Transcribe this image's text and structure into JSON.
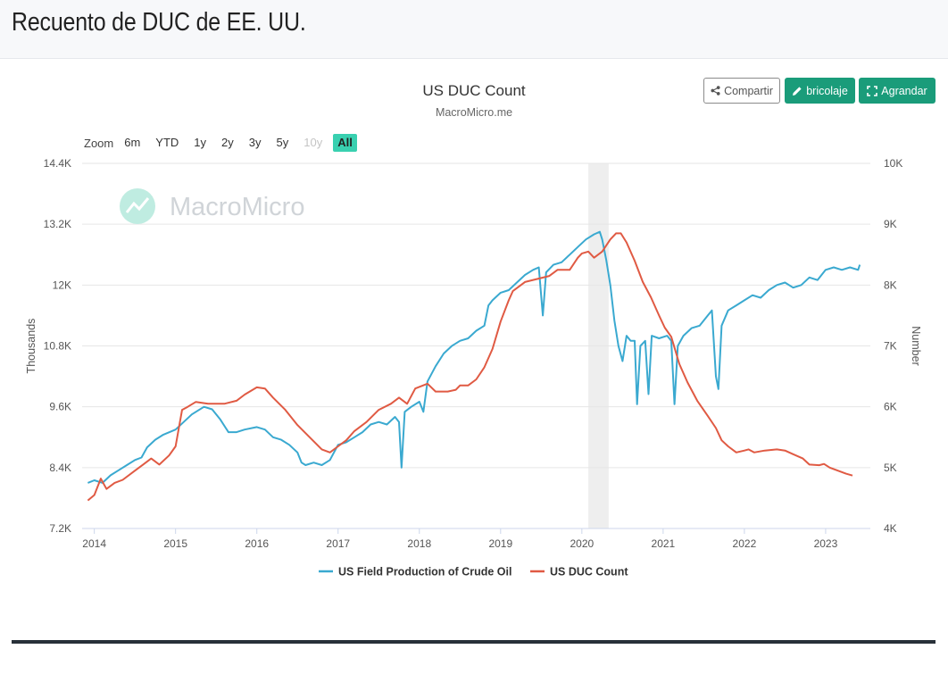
{
  "page": {
    "title": "Recuento de DUC de EE. UU."
  },
  "toolbar": {
    "share_label": "Compartir",
    "diy_label": "bricolaje",
    "expand_label": "Agrandar",
    "share_icon": "share-icon",
    "diy_icon": "pencil-icon",
    "expand_icon": "expand-icon"
  },
  "zoom": {
    "label": "Zoom",
    "options": [
      "6m",
      "YTD",
      "1y",
      "2y",
      "3y",
      "5y",
      "10y",
      "All"
    ],
    "disabled": "10y",
    "selected": "All"
  },
  "watermark": "MacroMicro",
  "chart_data": {
    "type": "line",
    "title": "US DUC Count",
    "subtitle": "MacroMicro.me",
    "yleft": {
      "label": "Thousands",
      "min": 7200,
      "max": 14400,
      "ticks": [
        7200,
        8400,
        9600,
        10800,
        12000,
        13200,
        14400
      ],
      "tick_labels": [
        "7.2K",
        "8.4K",
        "9.6K",
        "10.8K",
        "12K",
        "13.2K",
        "14.4K"
      ]
    },
    "yright": {
      "label": "Number",
      "min": 4000,
      "max": 10000,
      "ticks": [
        4000,
        5000,
        6000,
        7000,
        8000,
        9000,
        10000
      ],
      "tick_labels": [
        "4K",
        "5K",
        "6K",
        "7K",
        "8K",
        "9K",
        "10K"
      ]
    },
    "xaxis": {
      "min": 2013.85,
      "max": 2023.55,
      "ticks": [
        2014,
        2015,
        2016,
        2017,
        2018,
        2019,
        2020,
        2021,
        2022,
        2023
      ],
      "tick_labels": [
        "2014",
        "2015",
        "2016",
        "2017",
        "2018",
        "2019",
        "2020",
        "2021",
        "2022",
        "2023"
      ]
    },
    "shaded_period": [
      2020.08,
      2020.33
    ],
    "colors": {
      "crude": "#3aa9d0",
      "duc": "#e05a43",
      "shade": "#eeeeee",
      "grid": "#e6e6e6"
    },
    "series": [
      {
        "name": "US Field Production of Crude Oil",
        "axis": "left",
        "color": "#3aa9d0",
        "points": [
          [
            2013.92,
            8100
          ],
          [
            2014.0,
            8150
          ],
          [
            2014.1,
            8100
          ],
          [
            2014.2,
            8250
          ],
          [
            2014.3,
            8350
          ],
          [
            2014.4,
            8450
          ],
          [
            2014.5,
            8550
          ],
          [
            2014.58,
            8600
          ],
          [
            2014.65,
            8800
          ],
          [
            2014.75,
            8950
          ],
          [
            2014.85,
            9050
          ],
          [
            2015.0,
            9150
          ],
          [
            2015.1,
            9300
          ],
          [
            2015.2,
            9450
          ],
          [
            2015.35,
            9600
          ],
          [
            2015.45,
            9550
          ],
          [
            2015.55,
            9350
          ],
          [
            2015.65,
            9100
          ],
          [
            2015.75,
            9100
          ],
          [
            2015.85,
            9150
          ],
          [
            2016.0,
            9200
          ],
          [
            2016.1,
            9150
          ],
          [
            2016.2,
            9000
          ],
          [
            2016.3,
            8950
          ],
          [
            2016.4,
            8850
          ],
          [
            2016.5,
            8700
          ],
          [
            2016.55,
            8500
          ],
          [
            2016.6,
            8450
          ],
          [
            2016.7,
            8500
          ],
          [
            2016.8,
            8450
          ],
          [
            2016.9,
            8550
          ],
          [
            2017.0,
            8850
          ],
          [
            2017.1,
            8900
          ],
          [
            2017.2,
            9000
          ],
          [
            2017.3,
            9100
          ],
          [
            2017.4,
            9250
          ],
          [
            2017.5,
            9300
          ],
          [
            2017.6,
            9250
          ],
          [
            2017.7,
            9400
          ],
          [
            2017.75,
            9300
          ],
          [
            2017.78,
            8400
          ],
          [
            2017.82,
            9500
          ],
          [
            2017.9,
            9600
          ],
          [
            2018.0,
            9700
          ],
          [
            2018.05,
            9500
          ],
          [
            2018.1,
            10100
          ],
          [
            2018.2,
            10400
          ],
          [
            2018.3,
            10650
          ],
          [
            2018.4,
            10800
          ],
          [
            2018.5,
            10900
          ],
          [
            2018.6,
            10950
          ],
          [
            2018.7,
            11100
          ],
          [
            2018.8,
            11200
          ],
          [
            2018.85,
            11600
          ],
          [
            2018.9,
            11700
          ],
          [
            2019.0,
            11850
          ],
          [
            2019.1,
            11900
          ],
          [
            2019.2,
            12050
          ],
          [
            2019.3,
            12200
          ],
          [
            2019.4,
            12300
          ],
          [
            2019.47,
            12350
          ],
          [
            2019.52,
            11400
          ],
          [
            2019.56,
            12250
          ],
          [
            2019.65,
            12400
          ],
          [
            2019.75,
            12450
          ],
          [
            2019.85,
            12600
          ],
          [
            2019.95,
            12750
          ],
          [
            2020.05,
            12900
          ],
          [
            2020.15,
            13000
          ],
          [
            2020.22,
            13050
          ],
          [
            2020.25,
            12900
          ],
          [
            2020.3,
            12500
          ],
          [
            2020.35,
            12000
          ],
          [
            2020.4,
            11300
          ],
          [
            2020.45,
            10800
          ],
          [
            2020.5,
            10500
          ],
          [
            2020.55,
            11000
          ],
          [
            2020.6,
            10900
          ],
          [
            2020.65,
            10900
          ],
          [
            2020.68,
            9650
          ],
          [
            2020.72,
            10800
          ],
          [
            2020.78,
            10900
          ],
          [
            2020.82,
            9850
          ],
          [
            2020.86,
            11000
          ],
          [
            2020.95,
            10950
          ],
          [
            2021.05,
            11000
          ],
          [
            2021.1,
            10900
          ],
          [
            2021.14,
            9650
          ],
          [
            2021.18,
            10800
          ],
          [
            2021.25,
            11000
          ],
          [
            2021.35,
            11150
          ],
          [
            2021.45,
            11200
          ],
          [
            2021.55,
            11400
          ],
          [
            2021.6,
            11500
          ],
          [
            2021.65,
            10200
          ],
          [
            2021.68,
            9950
          ],
          [
            2021.72,
            11200
          ],
          [
            2021.8,
            11500
          ],
          [
            2021.9,
            11600
          ],
          [
            2022.0,
            11700
          ],
          [
            2022.1,
            11800
          ],
          [
            2022.2,
            11750
          ],
          [
            2022.3,
            11900
          ],
          [
            2022.4,
            12000
          ],
          [
            2022.5,
            12050
          ],
          [
            2022.6,
            11950
          ],
          [
            2022.7,
            12000
          ],
          [
            2022.8,
            12150
          ],
          [
            2022.9,
            12100
          ],
          [
            2023.0,
            12300
          ],
          [
            2023.1,
            12350
          ],
          [
            2023.2,
            12300
          ],
          [
            2023.3,
            12350
          ],
          [
            2023.4,
            12300
          ],
          [
            2023.42,
            12400
          ]
        ]
      },
      {
        "name": "US DUC Count",
        "axis": "right",
        "color": "#e05a43",
        "points": [
          [
            2013.92,
            4460
          ],
          [
            2014.0,
            4550
          ],
          [
            2014.08,
            4820
          ],
          [
            2014.15,
            4650
          ],
          [
            2014.25,
            4750
          ],
          [
            2014.35,
            4800
          ],
          [
            2014.5,
            4950
          ],
          [
            2014.6,
            5050
          ],
          [
            2014.7,
            5150
          ],
          [
            2014.8,
            5050
          ],
          [
            2014.92,
            5200
          ],
          [
            2015.0,
            5350
          ],
          [
            2015.08,
            5950
          ],
          [
            2015.15,
            6000
          ],
          [
            2015.25,
            6080
          ],
          [
            2015.4,
            6050
          ],
          [
            2015.6,
            6050
          ],
          [
            2015.75,
            6100
          ],
          [
            2015.85,
            6200
          ],
          [
            2016.0,
            6320
          ],
          [
            2016.1,
            6300
          ],
          [
            2016.2,
            6150
          ],
          [
            2016.35,
            5950
          ],
          [
            2016.5,
            5700
          ],
          [
            2016.65,
            5500
          ],
          [
            2016.8,
            5300
          ],
          [
            2016.9,
            5250
          ],
          [
            2017.0,
            5350
          ],
          [
            2017.1,
            5450
          ],
          [
            2017.2,
            5600
          ],
          [
            2017.35,
            5750
          ],
          [
            2017.5,
            5950
          ],
          [
            2017.65,
            6050
          ],
          [
            2017.75,
            6150
          ],
          [
            2017.85,
            6050
          ],
          [
            2017.95,
            6300
          ],
          [
            2018.1,
            6380
          ],
          [
            2018.2,
            6250
          ],
          [
            2018.35,
            6250
          ],
          [
            2018.45,
            6280
          ],
          [
            2018.5,
            6350
          ],
          [
            2018.6,
            6350
          ],
          [
            2018.7,
            6450
          ],
          [
            2018.8,
            6650
          ],
          [
            2018.9,
            6950
          ],
          [
            2019.0,
            7400
          ],
          [
            2019.1,
            7750
          ],
          [
            2019.15,
            7900
          ],
          [
            2019.3,
            8050
          ],
          [
            2019.45,
            8100
          ],
          [
            2019.6,
            8150
          ],
          [
            2019.7,
            8250
          ],
          [
            2019.85,
            8250
          ],
          [
            2019.95,
            8450
          ],
          [
            2020.0,
            8520
          ],
          [
            2020.08,
            8550
          ],
          [
            2020.15,
            8450
          ],
          [
            2020.25,
            8550
          ],
          [
            2020.35,
            8750
          ],
          [
            2020.42,
            8850
          ],
          [
            2020.48,
            8850
          ],
          [
            2020.55,
            8700
          ],
          [
            2020.65,
            8400
          ],
          [
            2020.75,
            8050
          ],
          [
            2020.85,
            7800
          ],
          [
            2020.95,
            7500
          ],
          [
            2021.02,
            7300
          ],
          [
            2021.1,
            7150
          ],
          [
            2021.2,
            6700
          ],
          [
            2021.3,
            6400
          ],
          [
            2021.42,
            6100
          ],
          [
            2021.55,
            5850
          ],
          [
            2021.65,
            5650
          ],
          [
            2021.72,
            5450
          ],
          [
            2021.8,
            5350
          ],
          [
            2021.9,
            5250
          ],
          [
            2022.0,
            5280
          ],
          [
            2022.05,
            5300
          ],
          [
            2022.12,
            5250
          ],
          [
            2022.25,
            5280
          ],
          [
            2022.4,
            5300
          ],
          [
            2022.5,
            5280
          ],
          [
            2022.6,
            5220
          ],
          [
            2022.72,
            5150
          ],
          [
            2022.8,
            5050
          ],
          [
            2022.92,
            5040
          ],
          [
            2022.98,
            5060
          ],
          [
            2023.05,
            5000
          ],
          [
            2023.15,
            4950
          ],
          [
            2023.25,
            4900
          ],
          [
            2023.33,
            4870
          ]
        ]
      }
    ],
    "legend": {
      "position": "bottom-center"
    }
  }
}
